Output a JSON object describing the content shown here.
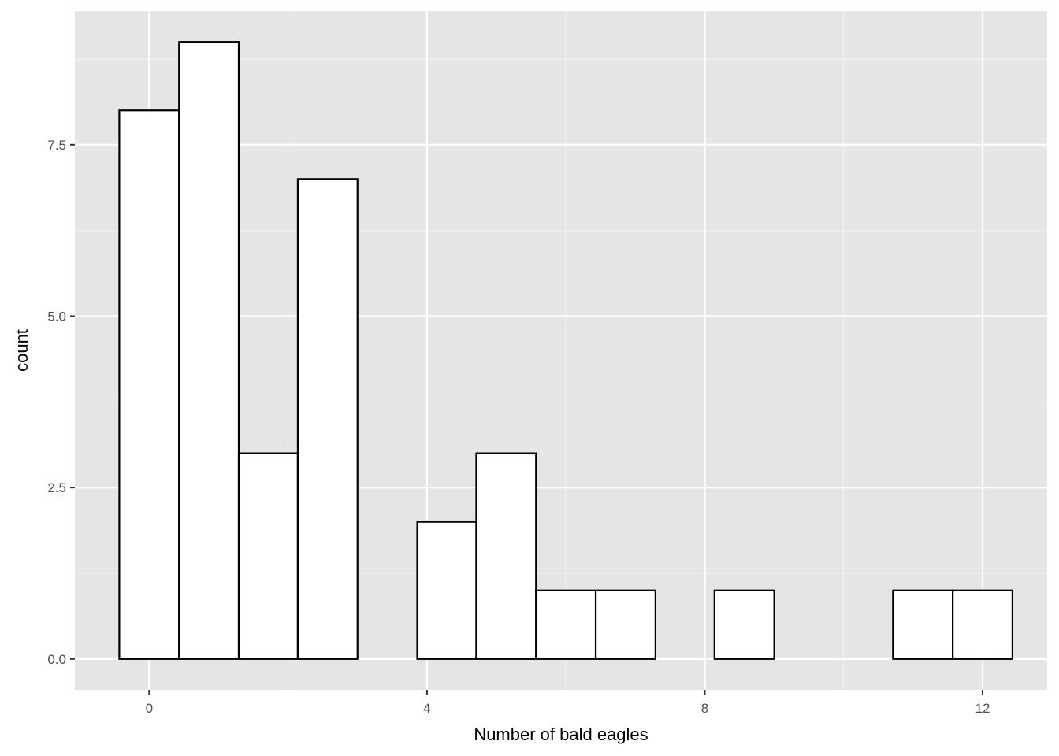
{
  "chart_data": {
    "type": "bar",
    "subtype": "histogram",
    "title": "",
    "xlabel": "Number of bald eagles",
    "ylabel": "count",
    "xlim": [
      -1.07,
      12.93
    ],
    "ylim": [
      -0.45,
      9.45
    ],
    "x_ticks": [
      0,
      4,
      8,
      12
    ],
    "x_tick_labels": [
      "0",
      "4",
      "8",
      "12"
    ],
    "y_ticks": [
      0,
      2.5,
      5,
      7.5
    ],
    "y_tick_labels": [
      "0.0",
      "2.5",
      "5.0",
      "7.5"
    ],
    "x_minor_ticks": [
      2,
      6,
      10
    ],
    "y_minor_ticks": [
      1.25,
      3.75,
      6.25,
      8.75
    ],
    "bin_width": 0.857,
    "bins": [
      {
        "x_min": -0.43,
        "x_max": 0.43,
        "count": 8
      },
      {
        "x_min": 0.43,
        "x_max": 1.29,
        "count": 9
      },
      {
        "x_min": 1.29,
        "x_max": 2.14,
        "count": 3
      },
      {
        "x_min": 2.14,
        "x_max": 3.0,
        "count": 7
      },
      {
        "x_min": 3.0,
        "x_max": 3.86,
        "count": 0
      },
      {
        "x_min": 3.86,
        "x_max": 4.71,
        "count": 2
      },
      {
        "x_min": 4.71,
        "x_max": 5.57,
        "count": 3
      },
      {
        "x_min": 5.57,
        "x_max": 6.43,
        "count": 1
      },
      {
        "x_min": 6.43,
        "x_max": 7.29,
        "count": 1
      },
      {
        "x_min": 7.29,
        "x_max": 8.14,
        "count": 0
      },
      {
        "x_min": 8.14,
        "x_max": 9.0,
        "count": 1
      },
      {
        "x_min": 9.0,
        "x_max": 9.86,
        "count": 0
      },
      {
        "x_min": 9.86,
        "x_max": 10.71,
        "count": 0
      },
      {
        "x_min": 10.71,
        "x_max": 11.57,
        "count": 1
      },
      {
        "x_min": 11.57,
        "x_max": 12.43,
        "count": 1
      }
    ],
    "grid": true,
    "legend": "none",
    "colors": {
      "panel_background": "#e5e5e5",
      "grid_major": "#ffffff",
      "grid_minor": "#f2f2f2",
      "bar_fill": "#ffffff",
      "bar_outline": "#000000",
      "tick_text": "#4d4d4d",
      "tick_mark": "#333333",
      "axis_title": "#000000"
    }
  }
}
